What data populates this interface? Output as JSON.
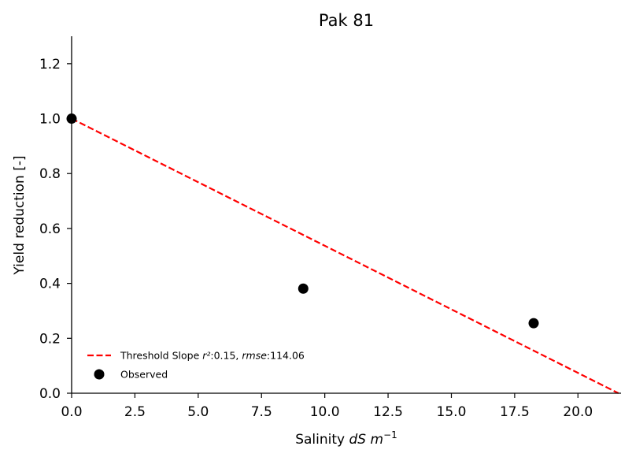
{
  "chart_data": {
    "type": "scatter",
    "title": "Pak 81",
    "xlabel": {
      "prefix": "Salinity ",
      "italic": "dS m",
      "sup": "−1"
    },
    "ylabel": "Yield reduction [-]",
    "xlim": [
      0,
      21.7
    ],
    "ylim": [
      0,
      1.3
    ],
    "xticks": [
      0,
      2.5,
      5,
      7.5,
      10,
      12.5,
      15,
      17.5,
      20
    ],
    "xtick_labels": [
      "0.0",
      "2.5",
      "5.0",
      "7.5",
      "10.0",
      "12.5",
      "15.0",
      "17.5",
      "20.0"
    ],
    "yticks": [
      0,
      0.2,
      0.4,
      0.6,
      0.8,
      1.0,
      1.2
    ],
    "ytick_labels": [
      "0.0",
      "0.2",
      "0.4",
      "0.6",
      "0.8",
      "1.0",
      "1.2"
    ],
    "grid": false,
    "legend_position": "lower-left",
    "series": [
      {
        "name": "Threshold Slope",
        "kind": "line",
        "style": "dashed",
        "color": "#ff0000",
        "x": [
          0,
          21.6
        ],
        "y": [
          1.0,
          0.0
        ],
        "legend": {
          "text": "Threshold Slope ",
          "r2_label": "r²",
          "r2_value": ":0.15, ",
          "rmse_label": "rmse",
          "rmse_value": ":114.06"
        }
      },
      {
        "name": "Observed",
        "kind": "scatter",
        "color": "#000000",
        "x": [
          0,
          9.15,
          18.25
        ],
        "y": [
          1.0,
          0.381,
          0.255
        ],
        "legend": {
          "text": "Observed"
        }
      }
    ]
  }
}
